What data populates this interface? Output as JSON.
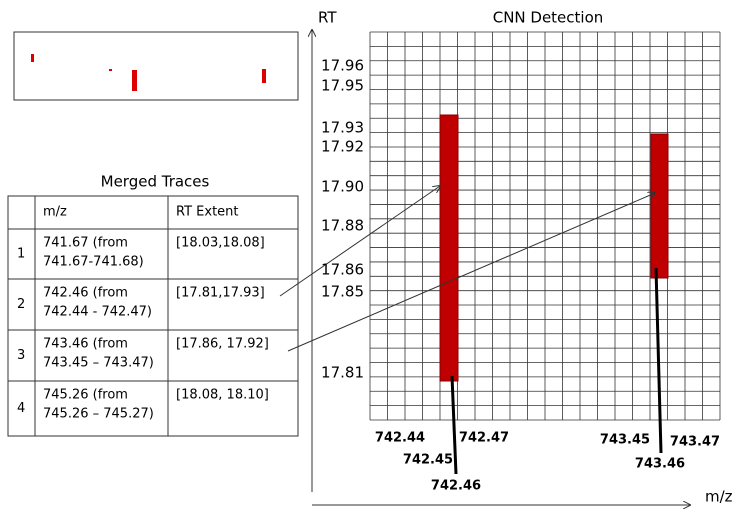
{
  "thumbnail_caption": null,
  "table": {
    "title": "Merged Traces",
    "header": [
      "",
      "m/z",
      "RT Extent"
    ],
    "rows": [
      [
        "1",
        [
          "741.67 (from",
          "741.67-741.68)"
        ],
        "[18.03,18.08]"
      ],
      [
        "2",
        [
          "742.46 (from",
          "742.44 - 742.47)"
        ],
        "[17.81,17.93]"
      ],
      [
        "3",
        [
          "743.46 (from",
          "743.45 – 743.47)"
        ],
        "[17.86, 17.92]"
      ],
      [
        "4",
        [
          "745.26 (from",
          "745.26 – 745.27)"
        ],
        "[18.08, 18.10]"
      ]
    ]
  },
  "plot": {
    "title": "CNN Detection",
    "y_axis": "RT",
    "x_axis": "m/z",
    "rt_labels": [
      "17.96",
      "17.95",
      "17.93",
      "17.92",
      "17.90",
      "17.88",
      "17.86",
      "17.85",
      "17.81"
    ],
    "mz_labels": [
      "742.44",
      "742.47",
      "742.45",
      "742.46",
      "743.45",
      "743.47",
      "743.46"
    ]
  }
}
